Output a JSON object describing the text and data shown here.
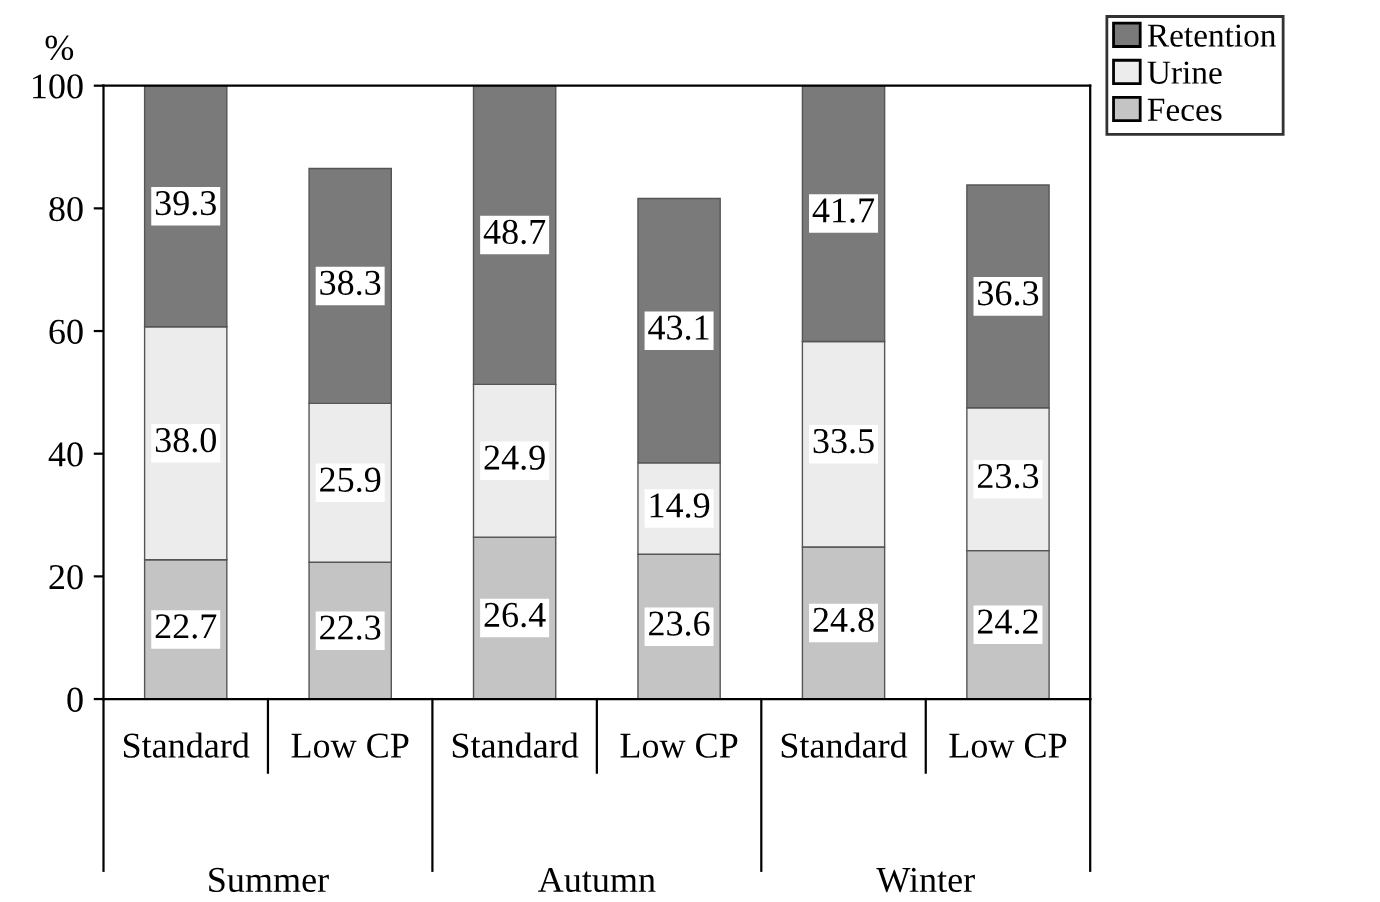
{
  "chart_data": {
    "type": "bar",
    "stacked": true,
    "ylabel": "%",
    "categories": [
      "Standard",
      "Low CP",
      "Standard",
      "Low CP",
      "Standard",
      "Low CP"
    ],
    "series": [
      {
        "name": "Feces",
        "color": "#c4c4c4",
        "values": [
          22.7,
          22.3,
          26.4,
          23.6,
          24.8,
          24.2
        ],
        "value_labels": [
          "22.7",
          "22.3",
          "26.4",
          "23.6",
          "24.8",
          "24.2"
        ]
      },
      {
        "name": "Urine",
        "color": "#ececec",
        "values": [
          38.0,
          25.9,
          24.9,
          14.9,
          33.5,
          23.3
        ],
        "value_labels": [
          "38.0",
          "25.9",
          "24.9",
          "14.9",
          "33.5",
          "23.3"
        ]
      },
      {
        "name": "Retention",
        "color": "#7a7a7a",
        "values": [
          39.3,
          38.3,
          48.7,
          43.1,
          41.7,
          36.3
        ],
        "value_labels": [
          "39.3",
          "38.3",
          "48.7",
          "43.1",
          "41.7",
          "36.3"
        ]
      }
    ],
    "annotations": [
      "Summer",
      "Autumn",
      "Winter"
    ],
    "ylim": [
      0,
      100
    ],
    "yticks": [
      0,
      20,
      40,
      60,
      80,
      100
    ],
    "grid": false,
    "legend": "top right"
  }
}
